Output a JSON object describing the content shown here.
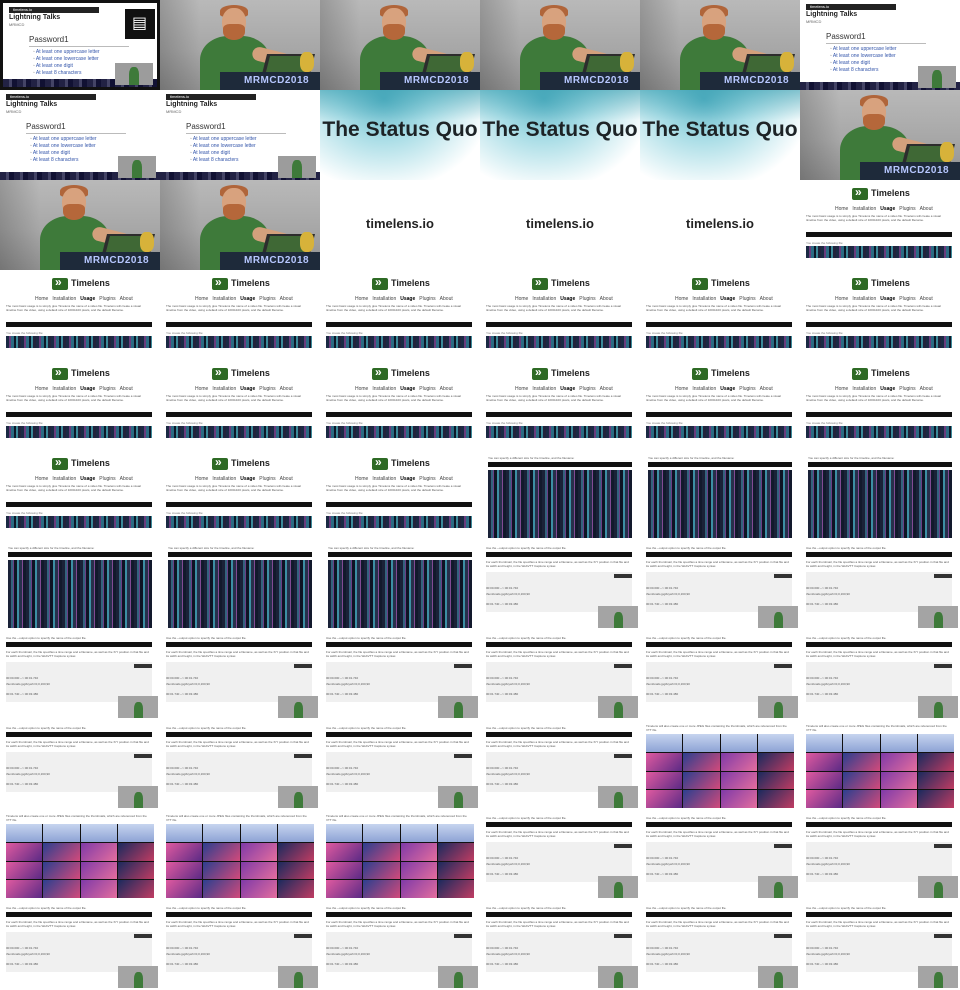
{
  "slide": {
    "url": "timelens.io",
    "heading": "Lightning Talks",
    "subheading": "MRMCD",
    "title": "Password1",
    "bullets": [
      "At least one uppercase letter",
      "At least one lowercase letter",
      "At least one digit",
      "At least 8 characters"
    ]
  },
  "presenter": {
    "podium_text": "MRMCD2018"
  },
  "status_quo": {
    "text": "The Status Quo"
  },
  "url_slide": {
    "text": "timelens.io"
  },
  "site": {
    "brand": "Timelens",
    "nav": [
      "Home",
      "Installation",
      "Usage",
      "Plugins",
      "About"
    ],
    "active_nav": "Usage",
    "intro": "The most basic usage is to simply give Timelens the name of a video file. Timelens will create a visual timeline from the video, using a default size of 1000x100 pixels, and the default filename.",
    "note": "You create the following file:"
  },
  "docs": {
    "intro": "You can specify a different size for the timeline, and the filename:",
    "para1": "Use the --output option to specify the name of the output file.",
    "para2": "For each thumbnail, the file specifies a time range and a filename, as well as the X/Y position in that file and its width and height, in the WebVTT Captions syntax.",
    "lines": [
      "00:00.000 --> 00:01.740",
      "thumbnails.jpg#xywh=0,0,160,90",
      "00:01.740 --> 00:03.480"
    ]
  },
  "thumbs": {
    "intro": "Timelens will also create one or more JPEG files containing the thumbnails, which are referenced from the VTT file."
  },
  "layout": [
    [
      "slide-framed",
      "presenter",
      "presenter",
      "presenter",
      "presenter",
      "slide"
    ],
    [
      "slide",
      "slide",
      "quo",
      "quo",
      "quo",
      "presenter"
    ],
    [
      "presenter",
      "presenter",
      "url",
      "url",
      "url",
      "site"
    ],
    [
      "site",
      "site",
      "site",
      "site",
      "site",
      "site"
    ],
    [
      "site",
      "site",
      "site",
      "site",
      "site",
      "site"
    ],
    [
      "site",
      "site",
      "site",
      "tall",
      "tall",
      "tall"
    ],
    [
      "tall",
      "tall",
      "tall",
      "doc",
      "doc",
      "doc"
    ],
    [
      "doc",
      "doc",
      "doc",
      "doc",
      "doc",
      "doc"
    ],
    [
      "doc",
      "doc",
      "doc",
      "doc",
      "thumbs",
      "thumbs"
    ],
    [
      "thumbs",
      "thumbs",
      "thumbs",
      "doc",
      "doc",
      "doc"
    ],
    [
      "doc",
      "doc",
      "doc",
      "doc",
      "doc",
      "doc"
    ]
  ]
}
